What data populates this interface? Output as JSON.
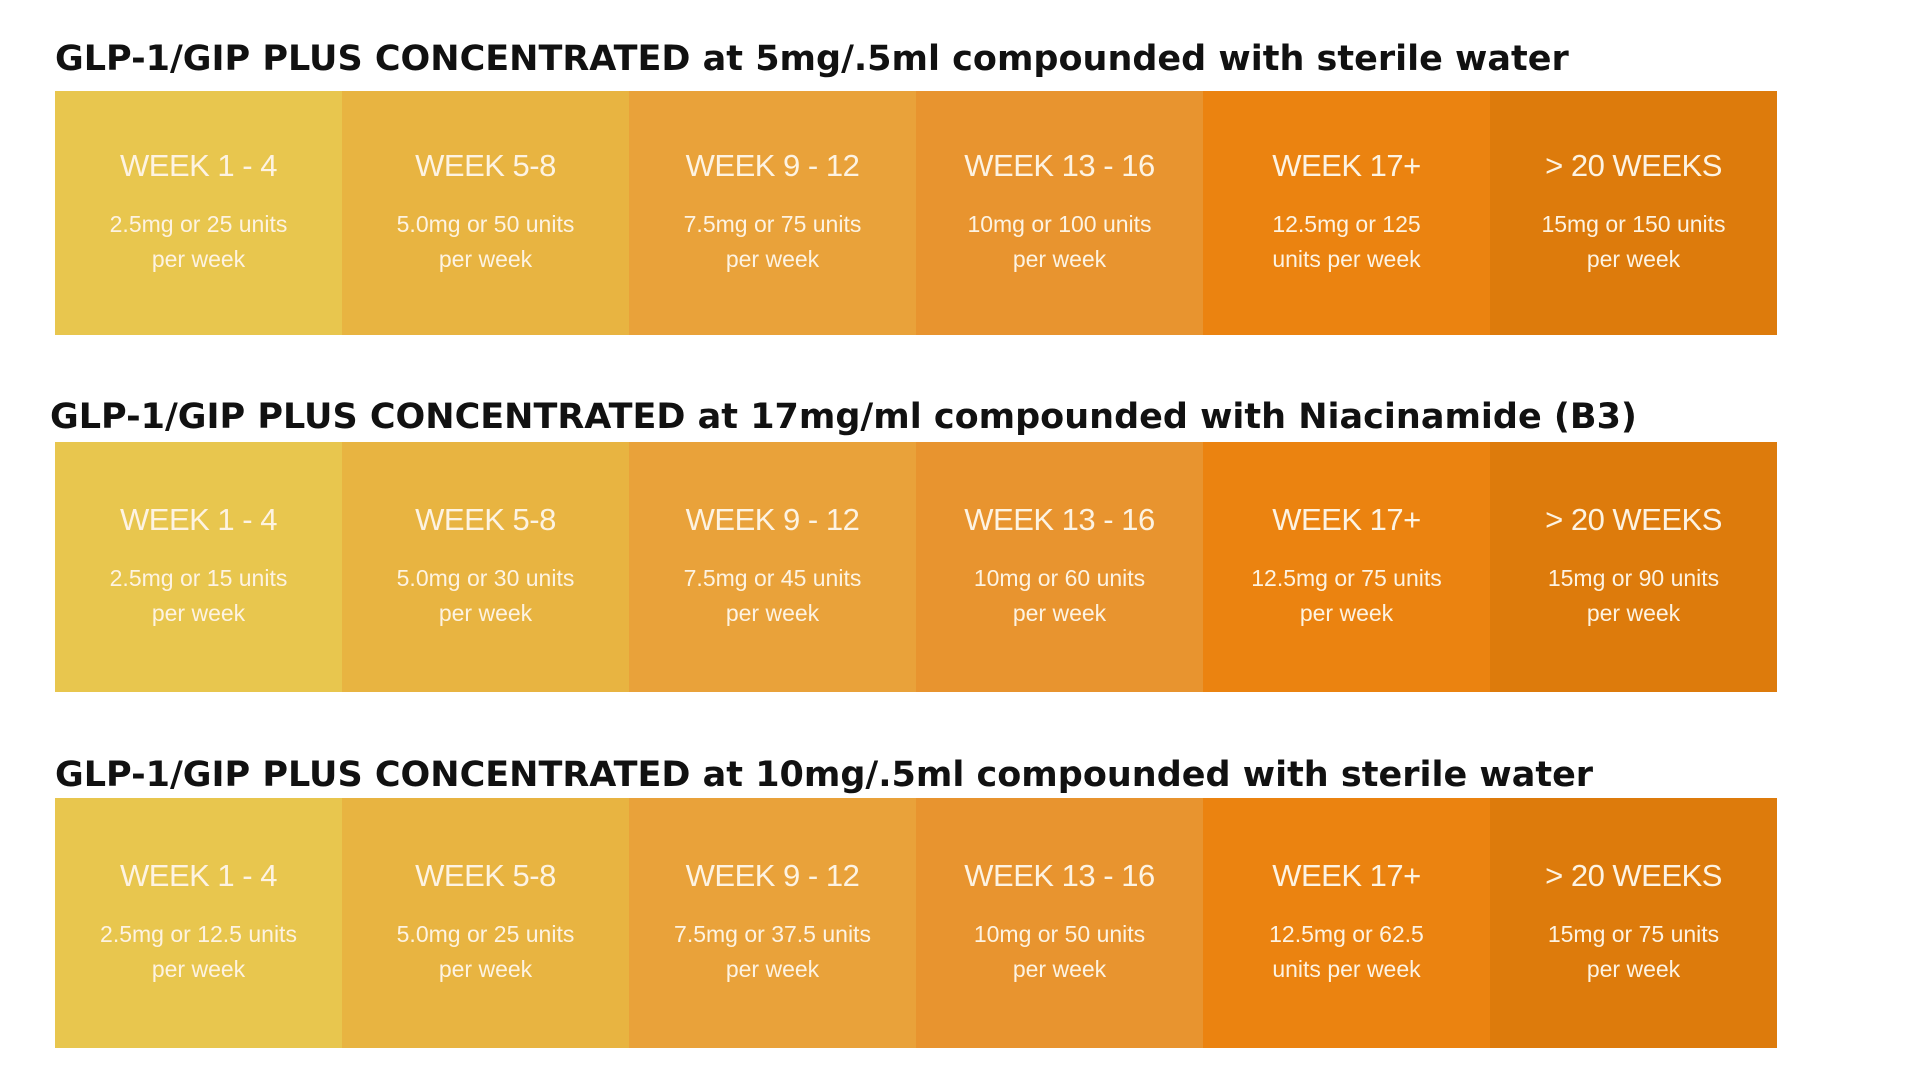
{
  "colors": {
    "title_text": "#111111",
    "cell_text": "#fdf3e2",
    "cells": [
      "#e8c64e",
      "#e8b441",
      "#e9a23a",
      "#e8942f",
      "#eb8310",
      "#dd7b0c"
    ]
  },
  "sections": [
    {
      "title": "GLP-1/GIP PLUS CONCENTRATED at 5mg/.5ml compounded with sterile water",
      "weeks": [
        {
          "label": "WEEK 1 - 4",
          "dose": "2.5mg or 25 units per week"
        },
        {
          "label": "WEEK 5-8",
          "dose": "5.0mg or 50 units per week"
        },
        {
          "label": "WEEK 9 - 12",
          "dose": "7.5mg or 75 units per week"
        },
        {
          "label": "WEEK 13 - 16",
          "dose": "10mg or 100 units per week"
        },
        {
          "label": "WEEK 17+",
          "dose": "12.5mg or 125 units per week"
        },
        {
          "label": "> 20 WEEKS",
          "dose": "15mg or 150 units per week"
        }
      ]
    },
    {
      "title": "GLP-1/GIP PLUS CONCENTRATED at 17mg/ml compounded with Niacinamide (B3)",
      "weeks": [
        {
          "label": "WEEK 1 - 4",
          "dose": "2.5mg or 15 units per week"
        },
        {
          "label": "WEEK 5-8",
          "dose": "5.0mg or 30 units per week"
        },
        {
          "label": "WEEK 9 - 12",
          "dose": "7.5mg or 45 units per week"
        },
        {
          "label": "WEEK 13 - 16",
          "dose": "10mg or 60 units per week"
        },
        {
          "label": "WEEK 17+",
          "dose": "12.5mg or 75 units per week"
        },
        {
          "label": "> 20 WEEKS",
          "dose": "15mg or 90 units per week"
        }
      ]
    },
    {
      "title": "GLP-1/GIP PLUS CONCENTRATED at 10mg/.5ml compounded with sterile water",
      "weeks": [
        {
          "label": "WEEK 1 - 4",
          "dose": "2.5mg or 12.5 units per week"
        },
        {
          "label": "WEEK 5-8",
          "dose": "5.0mg or 25 units per week"
        },
        {
          "label": "WEEK 9 - 12",
          "dose": "7.5mg or 37.5 units per week"
        },
        {
          "label": "WEEK 13 - 16",
          "dose": "10mg or 50 units per week"
        },
        {
          "label": "WEEK 17+",
          "dose": "12.5mg or 62.5 units per week"
        },
        {
          "label": "> 20 WEEKS",
          "dose": "15mg or 75 units per week"
        }
      ]
    }
  ]
}
